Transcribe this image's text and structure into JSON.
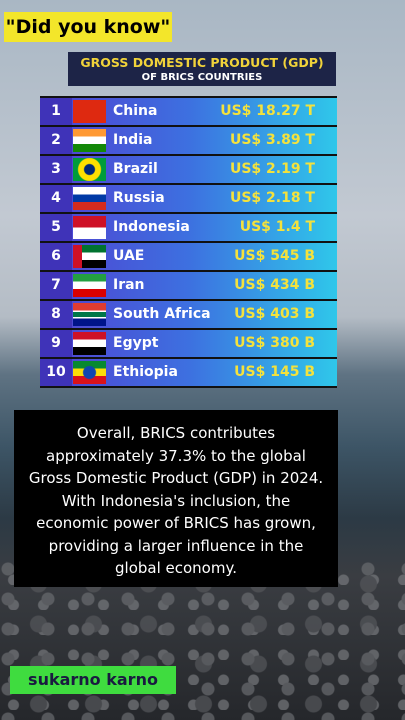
{
  "badge": "\"Did you know\"",
  "header": {
    "title": "GROSS DOMESTIC PRODUCT (GDP)",
    "subtitle": "OF BRICS COUNTRIES"
  },
  "table": {
    "rows": [
      [
        "1",
        "China",
        "US$ 18.27 T"
      ],
      [
        "2",
        "India",
        "US$ 3.89 T"
      ],
      [
        "3",
        "Brazil",
        "US$ 2.19 T"
      ],
      [
        "4",
        "Russia",
        "US$ 2.18 T"
      ],
      [
        "5",
        "Indonesia",
        "US$ 1.4 T"
      ],
      [
        "6",
        "UAE",
        "US$ 545 B"
      ],
      [
        "7",
        "Iran",
        "US$ 434 B"
      ],
      [
        "8",
        "South Africa",
        "US$ 403 B"
      ],
      [
        "9",
        "Egypt",
        "US$ 380 B"
      ],
      [
        "10",
        "Ethiopia",
        "US$ 145 B"
      ]
    ]
  },
  "paragraph": "Overall, BRICS contributes approximately 37.3% to the global Gross Domestic Product (GDP) in 2024. With Indonesia's inclusion, the economic power of BRICS has grown, providing a larger influence in the global economy.",
  "author": "sukarno karno"
}
